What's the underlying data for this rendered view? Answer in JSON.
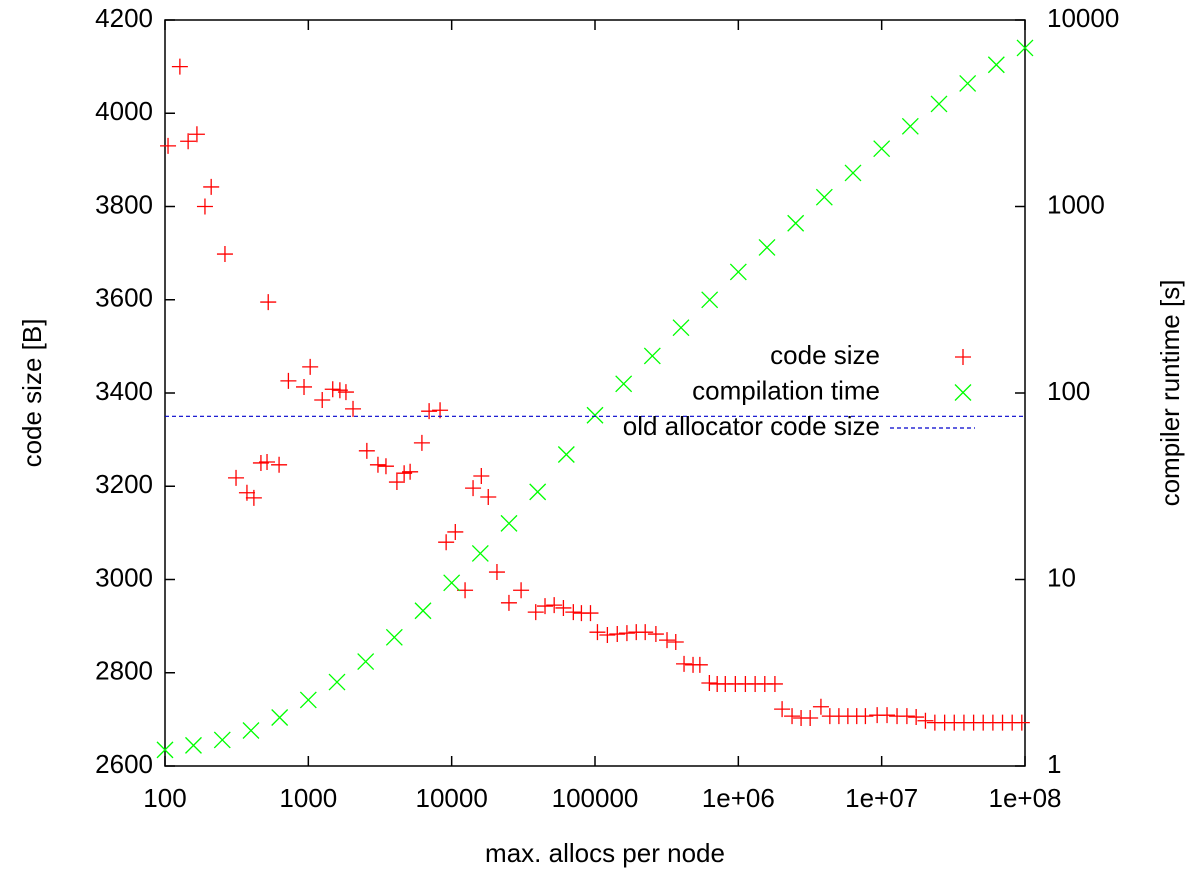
{
  "chart_data": {
    "type": "scatter",
    "xlabel": "max. allocs per node",
    "ylabel": "code size [B]",
    "y2label": "compiler runtime [s]",
    "xscale": "log",
    "y2scale": "log",
    "xlim": [
      100,
      100000000
    ],
    "xticks": [
      100,
      1000,
      10000,
      100000,
      {
        "value": 1000000,
        "label": "1e+06"
      },
      {
        "value": 10000000,
        "label": "1e+07"
      },
      {
        "value": 100000000,
        "label": "1e+08"
      }
    ],
    "ylim": [
      2600,
      4200
    ],
    "yticks": [
      2600,
      2800,
      3000,
      3200,
      3400,
      3600,
      3800,
      4000,
      4200
    ],
    "y2lim": [
      1,
      10000
    ],
    "y2ticks": [
      1,
      10,
      100,
      1000,
      10000
    ],
    "series": [
      {
        "name": "code size",
        "color": "#ff0000",
        "marker": "+",
        "x": [
          105,
          127,
          145,
          167,
          190,
          210,
          262,
          313,
          373,
          417,
          467,
          515,
          625,
          525,
          726,
          933,
          1030,
          1250,
          1480,
          1660,
          1830,
          2050,
          2560,
          3060,
          3480,
          4150,
          4660,
          5130,
          6200,
          6960,
          8300,
          9150,
          10600,
          12400,
          14100,
          16100,
          18000,
          20700,
          25100,
          30500,
          38600,
          44800,
          51900,
          60200,
          70600,
          80400,
          93000,
          104000,
          122000,
          143000,
          167000,
          194000,
          224000,
          266000,
          318000,
          366000,
          418000,
          483000,
          539000,
          628000,
          712000,
          811000,
          953000,
          1120000,
          1310000,
          1530000,
          1800000,
          2020000,
          2370000,
          2740000,
          3170000,
          3770000,
          4350000,
          5030000,
          5810000,
          6700000,
          7700000,
          9300000,
          10900000,
          12800000,
          15000000,
          17400000,
          20200000,
          23500000,
          27500000,
          32100000,
          37500000,
          43800000,
          51100000,
          59700000,
          69700000,
          81400000,
          95000000
        ],
        "values": [
          3930,
          4100,
          3940,
          3955,
          3800,
          3842,
          3698,
          3218,
          3186,
          3175,
          3250,
          3252,
          3246,
          3595,
          3426,
          3413,
          3456,
          3385,
          3408,
          3406,
          3402,
          3366,
          3276,
          3246,
          3243,
          3209,
          3228,
          3231,
          3293,
          3361,
          3363,
          3080,
          3102,
          2977,
          3196,
          3222,
          3177,
          3016,
          2950,
          2977,
          2930,
          2943,
          2945,
          2939,
          2930,
          2928,
          2928,
          2887,
          2881,
          2883,
          2885,
          2887,
          2887,
          2883,
          2870,
          2866,
          2819,
          2817,
          2817,
          2778,
          2776,
          2776,
          2776,
          2776,
          2776,
          2776,
          2776,
          2722,
          2707,
          2703,
          2703,
          2727,
          2707,
          2707,
          2707,
          2707,
          2707,
          2709,
          2709,
          2707,
          2707,
          2705,
          2697,
          2693,
          2693,
          2693,
          2693,
          2693,
          2693,
          2693,
          2693,
          2693,
          2693
        ]
      },
      {
        "name": "compilation time",
        "color": "#00ff00",
        "marker": "x",
        "axis": "y2",
        "x": [
          100,
          158,
          251,
          398,
          631,
          1000,
          1585,
          2512,
          3981,
          6310,
          10000,
          15849,
          25119,
          39811,
          63096,
          100000,
          158489,
          251189,
          398107,
          630957,
          1000000,
          1584893,
          2511886,
          3981072,
          6309573,
          10000000,
          15848932,
          25118864,
          39810717,
          63095734,
          100000000
        ],
        "values": [
          1.22,
          1.29,
          1.38,
          1.55,
          1.82,
          2.26,
          2.82,
          3.63,
          4.9,
          6.8,
          9.6,
          13.8,
          20,
          29.5,
          46.8,
          76,
          112,
          158,
          224,
          316,
          446,
          603,
          813,
          1122,
          1514,
          2042,
          2692,
          3548,
          4571,
          5754,
          7080
        ]
      },
      {
        "name": "old allocator code size",
        "color": "#0000cc",
        "marker": "dashed line",
        "values": [
          3350
        ]
      }
    ]
  }
}
